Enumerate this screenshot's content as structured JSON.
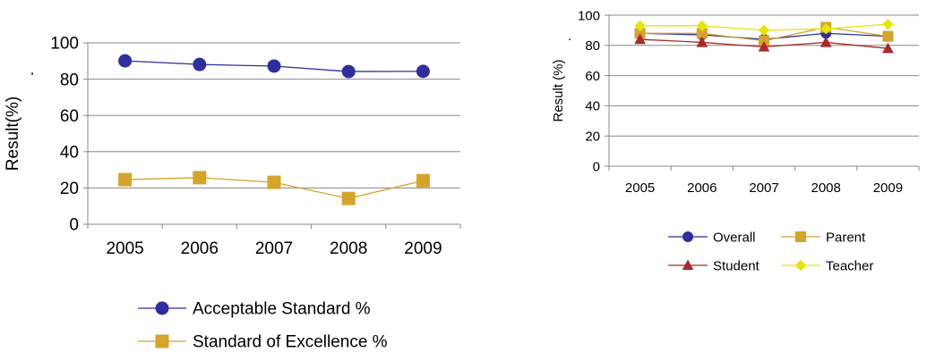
{
  "chart_data": [
    {
      "type": "line",
      "title": "",
      "xlabel": "",
      "ylabel": "Result(%)",
      "ylabel_mark": "·",
      "categories": [
        "2005",
        "2006",
        "2007",
        "2008",
        "2009"
      ],
      "ylim": [
        0,
        100
      ],
      "yticks": [
        0,
        20,
        40,
        60,
        80,
        100
      ],
      "grid": true,
      "legend_position": "bottom",
      "series": [
        {
          "name": "Acceptable Standard %",
          "values": [
            90.1,
            88.1,
            87.2,
            84.2,
            84.3
          ],
          "color": "#2e2e9e",
          "marker": "circle"
        },
        {
          "name": "Standard of Excellence %",
          "values": [
            24.6,
            25.7,
            23.1,
            14.2,
            24.0
          ],
          "color": "#d4a42b",
          "marker": "square"
        }
      ]
    },
    {
      "type": "line",
      "title": "",
      "xlabel": "",
      "ylabel": "Result (%)",
      "ylabel_mark": "·",
      "categories": [
        "2005",
        "2006",
        "2007",
        "2008",
        "2009"
      ],
      "ylim": [
        0,
        100
      ],
      "yticks": [
        0,
        20,
        40,
        60,
        80,
        100
      ],
      "grid": true,
      "legend_position": "bottom",
      "series": [
        {
          "name": "Overall",
          "values": [
            88,
            87,
            84,
            88,
            86
          ],
          "color": "#2e2e9e",
          "marker": "circle"
        },
        {
          "name": "Parent",
          "values": [
            88,
            88,
            83,
            92,
            86
          ],
          "color": "#d4a42b",
          "marker": "square"
        },
        {
          "name": "Student",
          "values": [
            84,
            82,
            79,
            82,
            78
          ],
          "color": "#a82a2a",
          "marker": "triangle"
        },
        {
          "name": "Teacher",
          "values": [
            93,
            93,
            90,
            91,
            94
          ],
          "color": "#e6e600",
          "marker": "diamond"
        }
      ]
    }
  ]
}
